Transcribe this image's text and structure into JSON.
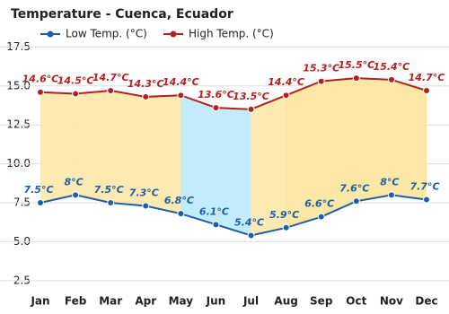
{
  "chart_data": {
    "type": "line",
    "title": "Temperature - Cuenca, Ecuador",
    "categories": [
      "Jan",
      "Feb",
      "Mar",
      "Apr",
      "May",
      "Jun",
      "Jul",
      "Aug",
      "Sep",
      "Oct",
      "Nov",
      "Dec"
    ],
    "series": [
      {
        "name": "Low Temp. (°C)",
        "color": "#1d5ea8",
        "values": [
          7.5,
          8,
          7.5,
          7.3,
          6.8,
          6.1,
          5.4,
          5.9,
          6.6,
          7.6,
          8,
          7.7
        ],
        "value_labels": [
          "7.5°C",
          "8°C",
          "7.5°C",
          "7.3°C",
          "6.8°C",
          "6.1°C",
          "5.4°C",
          "5.9°C",
          "6.6°C",
          "7.6°C",
          "8°C",
          "7.7°C"
        ]
      },
      {
        "name": "High Temp. (°C)",
        "color": "#b3201e",
        "values": [
          14.6,
          14.5,
          14.7,
          14.3,
          14.4,
          13.6,
          13.5,
          14.4,
          15.3,
          15.5,
          15.4,
          14.7
        ],
        "value_labels": [
          "14.6°C",
          "14.5°C",
          "14.7°C",
          "14.3°C",
          "14.4°C",
          "13.6°C",
          "13.5°C",
          "14.4°C",
          "15.3°C",
          "15.5°C",
          "15.4°C",
          "14.7°C"
        ]
      }
    ],
    "ylim": [
      1.8,
      18.5
    ],
    "yticks": [
      2.5,
      {
        "value": 5,
        "label": "5.0"
      },
      7.5,
      {
        "value": 10,
        "label": "10.0"
      },
      12.5,
      {
        "value": 15,
        "label": "15.0"
      },
      17.5
    ],
    "grid": true
  }
}
